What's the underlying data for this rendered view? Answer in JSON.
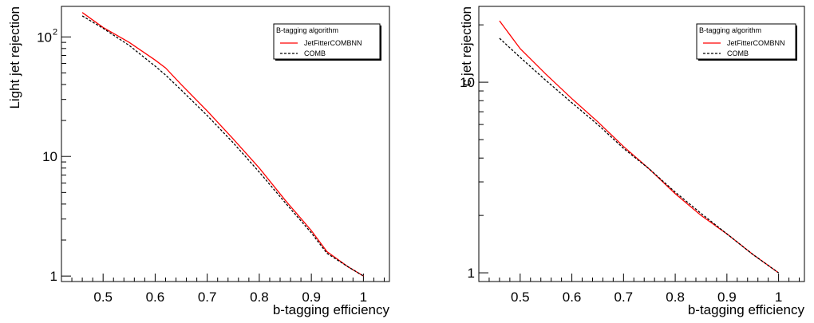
{
  "chart_data": [
    {
      "type": "line",
      "xlabel": "b-tagging efficiency",
      "ylabel": "Light jet rejection",
      "xlim": [
        0.42,
        1.05
      ],
      "ylim": [
        0.9,
        180
      ],
      "yscale": "log",
      "grid": false,
      "legend_placement": "top-right",
      "legend_title": "B-tagging algorithm",
      "x_ticks": [
        {
          "value": 0.5,
          "label": "0.5"
        },
        {
          "value": 0.6,
          "label": "0.6"
        },
        {
          "value": 0.7,
          "label": "0.7"
        },
        {
          "value": 0.8,
          "label": "0.8"
        },
        {
          "value": 0.9,
          "label": "0.9"
        },
        {
          "value": 1.0,
          "label": "1"
        }
      ],
      "y_ticks": [
        {
          "value": 1,
          "label": "1",
          "sup": ""
        },
        {
          "value": 10,
          "label": "10",
          "sup": ""
        },
        {
          "value": 100,
          "label": "10",
          "sup": "2"
        }
      ],
      "series": [
        {
          "name": "JetFitterCOMBNN",
          "color": "#ff0000",
          "style": "solid",
          "x": [
            0.46,
            0.5,
            0.55,
            0.6,
            0.62,
            0.65,
            0.7,
            0.75,
            0.8,
            0.85,
            0.9,
            0.93,
            0.97,
            1.0
          ],
          "y": [
            160,
            120,
            90,
            64,
            55,
            40,
            24,
            14,
            8.0,
            4.3,
            2.4,
            1.6,
            1.2,
            1.0
          ]
        },
        {
          "name": "COMB",
          "color": "#000000",
          "style": "dashed",
          "x": [
            0.46,
            0.5,
            0.55,
            0.6,
            0.62,
            0.65,
            0.7,
            0.75,
            0.8,
            0.85,
            0.9,
            0.93,
            0.97,
            1.0
          ],
          "y": [
            150,
            118,
            85,
            57,
            48,
            36,
            22,
            13,
            7.4,
            4.1,
            2.3,
            1.55,
            1.2,
            1.0
          ]
        }
      ]
    },
    {
      "type": "line",
      "xlabel": "b-tagging efficiency",
      "ylabel": "c jet rejection",
      "xlim": [
        0.42,
        1.05
      ],
      "ylim": [
        0.9,
        25
      ],
      "yscale": "log",
      "grid": false,
      "legend_placement": "top-right",
      "legend_title": "B-tagging algorithm",
      "x_ticks": [
        {
          "value": 0.5,
          "label": "0.5"
        },
        {
          "value": 0.6,
          "label": "0.6"
        },
        {
          "value": 0.7,
          "label": "0.7"
        },
        {
          "value": 0.8,
          "label": "0.8"
        },
        {
          "value": 0.9,
          "label": "0.9"
        },
        {
          "value": 1.0,
          "label": "1"
        }
      ],
      "y_ticks": [
        {
          "value": 1,
          "label": "1",
          "sup": ""
        },
        {
          "value": 10,
          "label": "10",
          "sup": ""
        }
      ],
      "series": [
        {
          "name": "JetFitterCOMBNN",
          "color": "#ff0000",
          "style": "solid",
          "x": [
            0.46,
            0.5,
            0.55,
            0.6,
            0.65,
            0.7,
            0.75,
            0.8,
            0.85,
            0.9,
            0.95,
            1.0
          ],
          "y": [
            21,
            15,
            11,
            8.2,
            6.2,
            4.6,
            3.5,
            2.6,
            2.0,
            1.6,
            1.25,
            1.0
          ]
        },
        {
          "name": "COMB",
          "color": "#000000",
          "style": "dashed",
          "x": [
            0.46,
            0.5,
            0.55,
            0.6,
            0.65,
            0.7,
            0.75,
            0.8,
            0.85,
            0.9,
            0.95,
            1.0
          ],
          "y": [
            17,
            13.5,
            10.2,
            7.8,
            6.0,
            4.5,
            3.5,
            2.65,
            2.05,
            1.6,
            1.25,
            1.0
          ]
        }
      ]
    }
  ]
}
